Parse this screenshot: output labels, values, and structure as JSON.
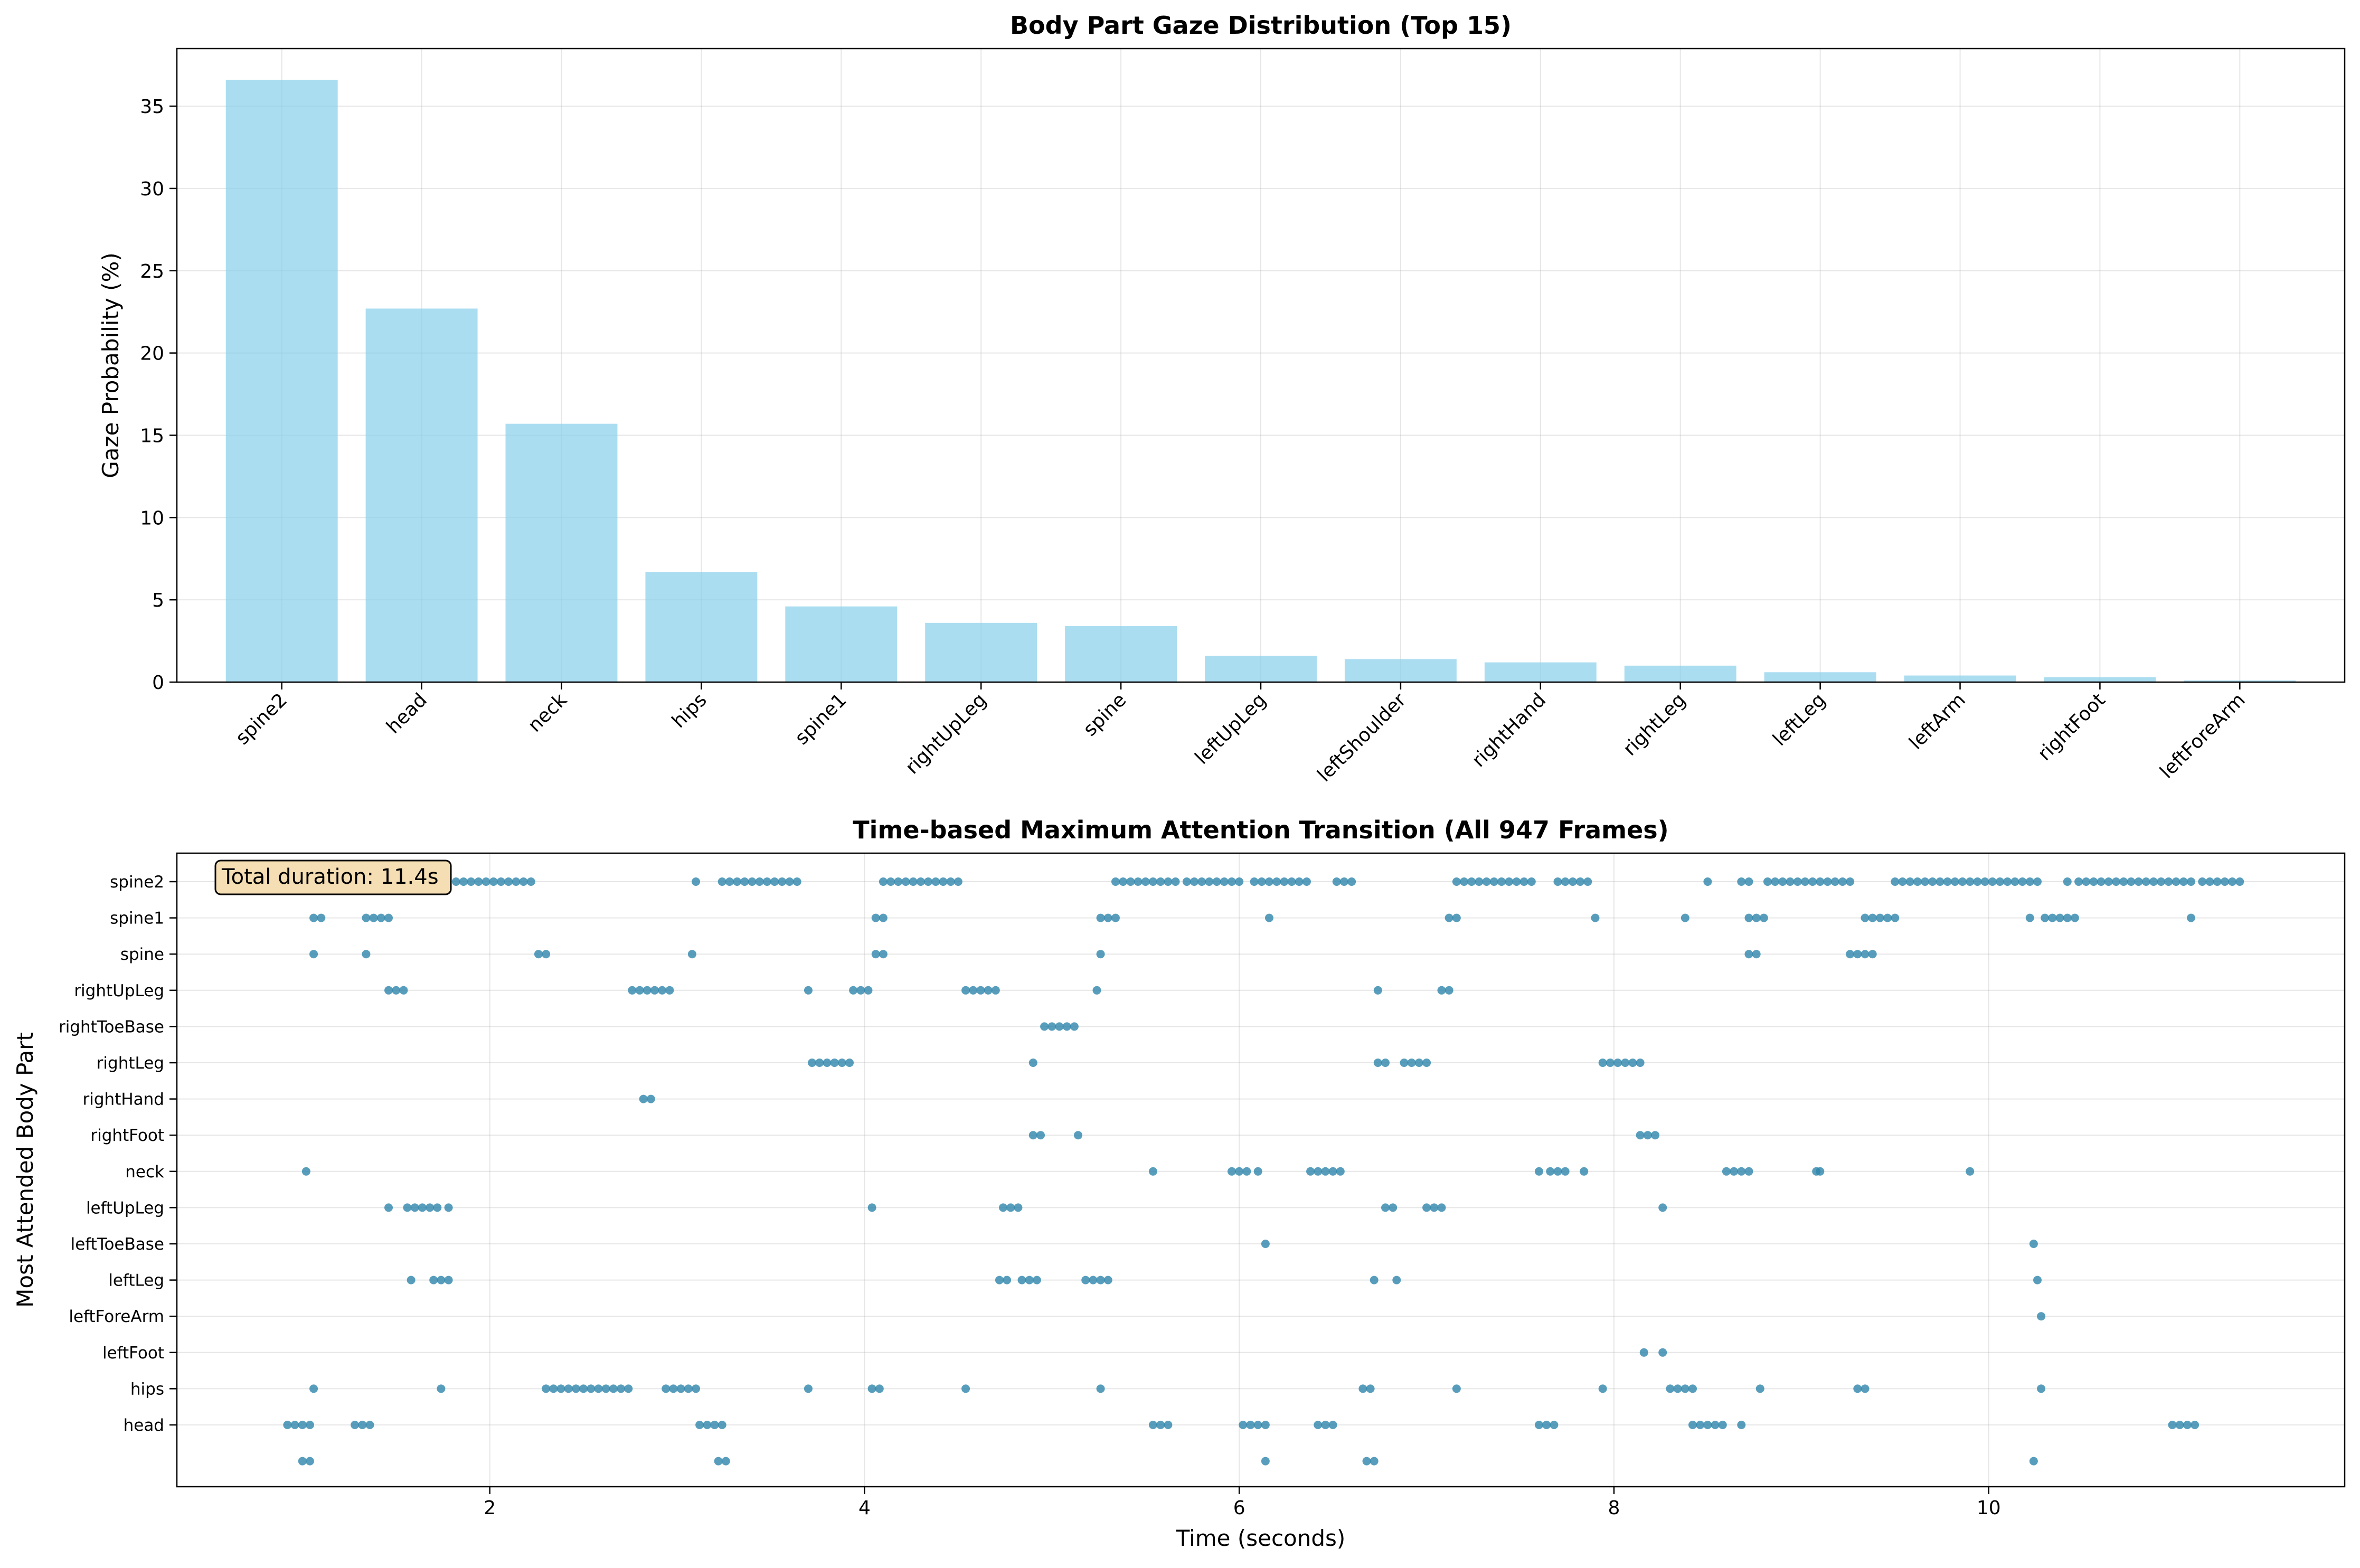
{
  "top_chart": {
    "title": "Body Part Gaze Distribution (Top 15)",
    "ylabel": "Gaze Probability (%)",
    "bar_color": "#87CEEB",
    "yticks": [
      "0",
      "5",
      "10",
      "15",
      "20",
      "25",
      "30",
      "35"
    ]
  },
  "bottom_chart": {
    "title": "Time-based Maximum Attention Transition (All 947 Frames)",
    "xlabel": "Time (seconds)",
    "ylabel": "Most Attended Body Part",
    "annotation": "Total duration: 11.4s",
    "point_color": "#2E86AB",
    "xticks": [
      "2",
      "4",
      "6",
      "8",
      "10"
    ]
  },
  "chart_data": [
    {
      "type": "bar",
      "title": "Body Part Gaze Distribution (Top 15)",
      "xlabel": "",
      "ylabel": "Gaze Probability (%)",
      "ylim": [
        0,
        38.5
      ],
      "grid": true,
      "categories": [
        "spine2",
        "head",
        "neck",
        "hips",
        "spine1",
        "rightUpLeg",
        "spine",
        "leftUpLeg",
        "leftShoulder",
        "rightHand",
        "rightLeg",
        "leftLeg",
        "leftArm",
        "rightFoot",
        "leftForeArm"
      ],
      "values": [
        36.6,
        22.7,
        15.7,
        6.7,
        4.6,
        3.6,
        3.4,
        1.6,
        1.4,
        1.2,
        1.0,
        0.6,
        0.4,
        0.3,
        0.1
      ]
    },
    {
      "type": "scatter",
      "title": "Time-based Maximum Attention Transition (All 947 Frames)",
      "xlabel": "Time (seconds)",
      "ylabel": "Most Attended Body Part",
      "xlim": [
        0.33,
        11.9
      ],
      "grid": true,
      "categories": [
        "spine2",
        "spine1",
        "spine",
        "rightUpLeg",
        "rightToeBase",
        "rightLeg",
        "rightHand",
        "rightFoot",
        "neck",
        "leftUpLeg",
        "leftToeBase",
        "leftLeg",
        "leftForeArm",
        "leftFoot",
        "hips",
        "head",
        ""
      ],
      "series": [
        {
          "category": "spine2",
          "points": [
            1.82,
            1.86,
            1.9,
            1.94,
            1.98,
            2.02,
            2.06,
            2.1,
            2.14,
            2.18,
            2.22,
            3.1,
            3.24,
            3.28,
            3.32,
            3.36,
            3.4,
            3.44,
            3.48,
            3.52,
            3.56,
            3.6,
            3.64,
            4.1,
            4.14,
            4.18,
            4.22,
            4.26,
            4.3,
            4.34,
            4.38,
            4.42,
            4.46,
            4.5,
            5.34,
            5.38,
            5.42,
            5.46,
            5.5,
            5.54,
            5.58,
            5.62,
            5.66,
            5.72,
            5.76,
            5.8,
            5.84,
            5.88,
            5.92,
            5.96,
            6.0,
            6.08,
            6.12,
            6.16,
            6.2,
            6.24,
            6.28,
            6.32,
            6.36,
            6.52,
            6.56,
            6.6,
            7.16,
            7.2,
            7.24,
            7.28,
            7.32,
            7.36,
            7.4,
            7.44,
            7.48,
            7.52,
            7.56,
            7.7,
            7.74,
            7.78,
            7.82,
            7.86,
            8.5,
            8.68,
            8.72,
            8.82,
            8.86,
            8.9,
            8.94,
            8.98,
            9.02,
            9.06,
            9.1,
            9.14,
            9.18,
            9.22,
            9.26,
            9.5,
            9.54,
            9.58,
            9.62,
            9.66,
            9.7,
            9.74,
            9.78,
            9.82,
            9.86,
            9.9,
            9.94,
            9.98,
            10.02,
            10.06,
            10.1,
            10.14,
            10.18,
            10.22,
            10.26,
            10.42,
            10.48,
            10.52,
            10.56,
            10.6,
            10.64,
            10.68,
            10.72,
            10.76,
            10.8,
            10.84,
            10.88,
            10.92,
            10.96,
            11.0,
            11.04,
            11.08,
            11.14,
            11.18,
            11.22,
            11.26,
            11.3,
            11.34
          ]
        },
        {
          "category": "spine1",
          "points": [
            1.06,
            1.1,
            1.34,
            1.38,
            1.42,
            1.46,
            4.06,
            4.1,
            5.26,
            5.3,
            5.34,
            6.16,
            7.12,
            7.16,
            7.9,
            8.38,
            8.72,
            8.76,
            8.8,
            9.34,
            9.38,
            9.42,
            9.46,
            9.5,
            10.22,
            10.3,
            10.34,
            10.38,
            10.42,
            10.46,
            11.08
          ]
        },
        {
          "category": "spine",
          "points": [
            1.06,
            1.34,
            2.26,
            2.3,
            3.08,
            4.06,
            4.1,
            5.26,
            8.72,
            8.76,
            9.26,
            9.3,
            9.34,
            9.38
          ]
        },
        {
          "category": "rightUpLeg",
          "points": [
            1.46,
            1.5,
            1.54,
            2.76,
            2.8,
            2.84,
            2.88,
            2.92,
            2.96,
            3.7,
            3.94,
            3.98,
            4.02,
            4.54,
            4.58,
            4.62,
            4.66,
            4.7,
            5.24,
            6.74,
            7.08,
            7.12
          ]
        },
        {
          "category": "rightToeBase",
          "points": [
            4.96,
            5.0,
            5.04,
            5.08,
            5.12
          ]
        },
        {
          "category": "rightLeg",
          "points": [
            3.72,
            3.76,
            3.8,
            3.84,
            3.88,
            3.92,
            4.9,
            6.74,
            6.78,
            6.88,
            6.92,
            6.96,
            7.0,
            7.94,
            7.98,
            8.02,
            8.06,
            8.1,
            8.14
          ]
        },
        {
          "category": "rightHand",
          "points": [
            2.82,
            2.86
          ]
        },
        {
          "category": "rightFoot",
          "points": [
            4.9,
            4.94,
            5.14,
            8.14,
            8.18,
            8.22
          ]
        },
        {
          "category": "neck",
          "points": [
            1.02,
            5.54,
            5.96,
            6.0,
            6.04,
            6.1,
            6.38,
            6.42,
            6.46,
            6.5,
            6.54,
            7.6,
            7.66,
            7.7,
            7.74,
            7.84,
            8.6,
            8.64,
            8.68,
            8.72,
            9.08,
            9.1,
            9.9
          ]
        },
        {
          "category": "leftUpLeg",
          "points": [
            1.46,
            1.56,
            1.6,
            1.64,
            1.68,
            1.72,
            1.78,
            4.04,
            4.74,
            4.78,
            4.82,
            6.78,
            6.82,
            7.0,
            7.04,
            7.08,
            8.26
          ]
        },
        {
          "category": "leftToeBase",
          "points": [
            6.14,
            10.24
          ]
        },
        {
          "category": "leftLeg",
          "points": [
            1.58,
            1.7,
            1.74,
            1.78,
            4.72,
            4.76,
            4.84,
            4.88,
            4.92,
            5.18,
            5.22,
            5.26,
            5.3,
            6.72,
            6.84,
            10.26
          ]
        },
        {
          "category": "leftForeArm",
          "points": [
            10.28
          ]
        },
        {
          "category": "leftFoot",
          "points": [
            8.16,
            8.26
          ]
        },
        {
          "category": "hips",
          "points": [
            1.06,
            1.74,
            2.3,
            2.34,
            2.38,
            2.42,
            2.46,
            2.5,
            2.54,
            2.58,
            2.62,
            2.66,
            2.7,
            2.74,
            2.94,
            2.98,
            3.02,
            3.06,
            3.1,
            3.7,
            4.04,
            4.08,
            4.54,
            5.26,
            6.66,
            6.7,
            7.16,
            7.94,
            8.3,
            8.34,
            8.38,
            8.42,
            8.78,
            9.3,
            9.34,
            10.28
          ]
        },
        {
          "category": "head",
          "points": [
            0.92,
            0.96,
            1.0,
            1.04,
            1.28,
            1.32,
            1.36,
            3.12,
            3.16,
            3.2,
            3.24,
            5.54,
            5.58,
            5.62,
            6.02,
            6.06,
            6.1,
            6.14,
            6.42,
            6.46,
            6.5,
            7.6,
            7.64,
            7.68,
            8.42,
            8.46,
            8.5,
            8.54,
            8.58,
            8.68,
            10.98,
            11.02,
            11.06,
            11.1
          ]
        },
        {
          "category": "",
          "points": [
            1.0,
            1.04,
            3.22,
            3.26,
            6.14,
            6.68,
            6.72,
            10.24
          ]
        }
      ]
    }
  ]
}
